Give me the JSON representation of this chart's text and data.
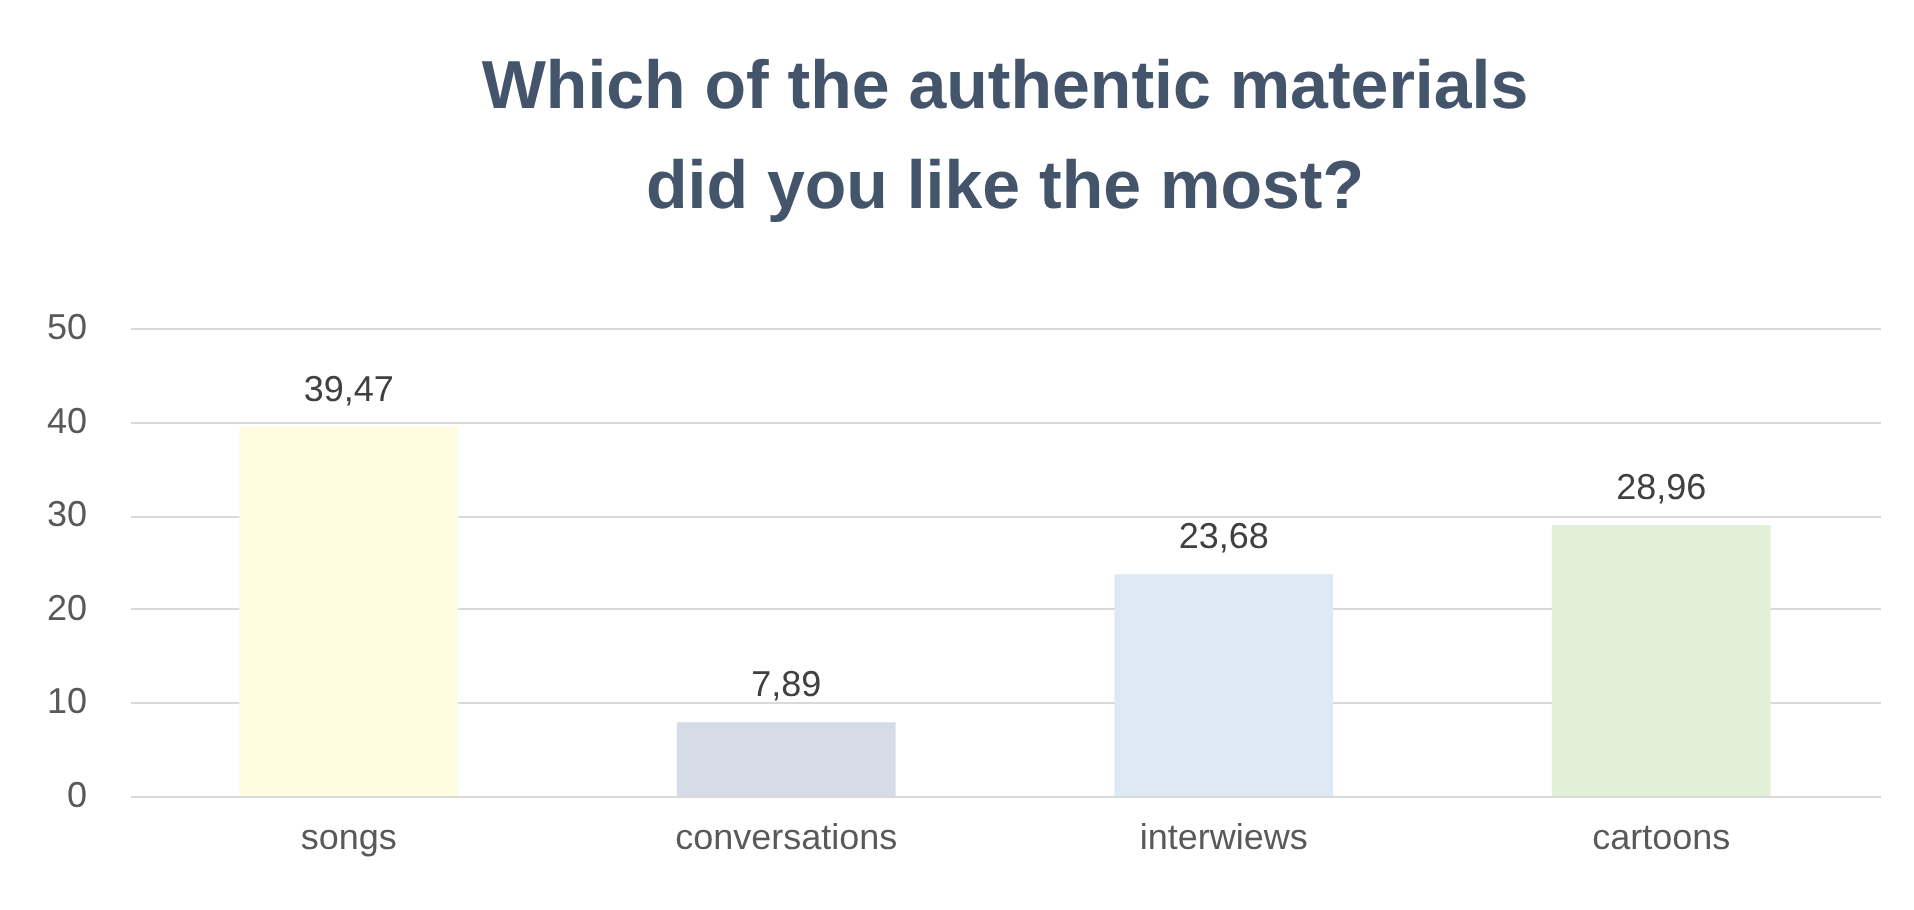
{
  "chart_data": {
    "type": "bar",
    "title": "Which of the authentic materials did you like the most?",
    "categories": [
      "songs",
      "conversations",
      "interwiews",
      "cartoons"
    ],
    "values": [
      39.47,
      7.89,
      23.68,
      28.96
    ],
    "colors": [
      "#fffde1",
      "#d6dce5",
      "#dde9f5",
      "#e2efd9"
    ],
    "value_labels": [
      "39,47",
      "7,89",
      "23,68",
      "28,96"
    ],
    "ylim": [
      0,
      50
    ],
    "yticks": [
      0,
      10,
      20,
      30,
      40,
      50
    ],
    "grid": "y"
  }
}
